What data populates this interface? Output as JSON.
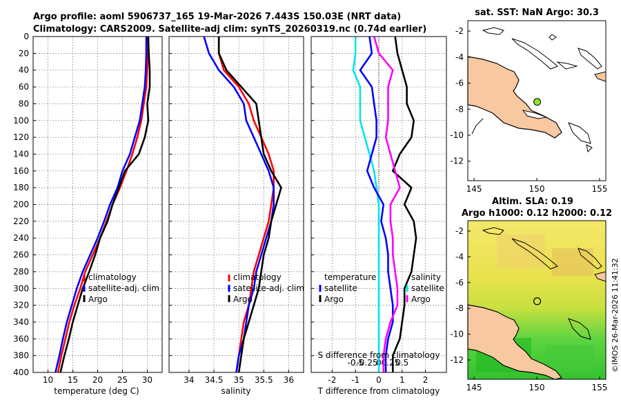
{
  "header": {
    "title_line1": "Argo profile: aoml 5906737_165 19-Mar-2026 7.443S 150.03E (NRT data)",
    "title_line2": "Climatology: CARS2009. Satellite-adj clim: synTS_20260319.nc (0.74d earlier)"
  },
  "colors": {
    "climatology": "#ff0000",
    "satellite": "#0000ff",
    "argo": "#000000",
    "temp_diff": "#00e5ee",
    "sal_diff": "#ff00ff",
    "land": "#f8c8a0",
    "map_marker": "#90e030"
  },
  "chart_data": [
    {
      "type": "line",
      "title": "",
      "xlabel": "temperature (deg C)",
      "ylabel": "",
      "xlim": [
        7,
        33
      ],
      "ylim": [
        400,
        0
      ],
      "xticks": [
        10,
        15,
        20,
        25,
        30
      ],
      "yticks": [
        0,
        20,
        40,
        60,
        80,
        100,
        120,
        140,
        160,
        180,
        200,
        220,
        240,
        260,
        280,
        300,
        320,
        340,
        360,
        380,
        400
      ],
      "grid": true,
      "legend": [
        "climatology",
        "satellite-adj. clim",
        "Argo"
      ],
      "series": [
        {
          "name": "climatology",
          "color": "red",
          "points": [
            [
              30.1,
              0
            ],
            [
              30.1,
              20
            ],
            [
              30.0,
              40
            ],
            [
              29.8,
              60
            ],
            [
              29.3,
              80
            ],
            [
              28.8,
              100
            ],
            [
              28.0,
              120
            ],
            [
              27.0,
              140
            ],
            [
              25.8,
              160
            ],
            [
              24.5,
              180
            ],
            [
              23.0,
              200
            ],
            [
              21.8,
              220
            ],
            [
              20.5,
              240
            ],
            [
              19.0,
              260
            ],
            [
              17.5,
              280
            ],
            [
              16.5,
              300
            ],
            [
              15.3,
              320
            ],
            [
              14.3,
              340
            ],
            [
              13.5,
              360
            ],
            [
              12.7,
              380
            ],
            [
              12.0,
              400
            ]
          ]
        },
        {
          "name": "satellite-adj. clim",
          "color": "blue",
          "points": [
            [
              29.8,
              0
            ],
            [
              29.8,
              20
            ],
            [
              29.7,
              40
            ],
            [
              29.5,
              60
            ],
            [
              29.0,
              80
            ],
            [
              28.5,
              100
            ],
            [
              27.5,
              120
            ],
            [
              26.5,
              140
            ],
            [
              25.0,
              160
            ],
            [
              24.0,
              180
            ],
            [
              22.5,
              200
            ],
            [
              21.3,
              220
            ],
            [
              20.0,
              240
            ],
            [
              18.5,
              260
            ],
            [
              17.0,
              280
            ],
            [
              15.8,
              300
            ],
            [
              14.8,
              320
            ],
            [
              13.8,
              340
            ],
            [
              13.0,
              360
            ],
            [
              12.3,
              380
            ],
            [
              11.5,
              400
            ]
          ]
        },
        {
          "name": "Argo",
          "color": "black",
          "points": [
            [
              30.2,
              0
            ],
            [
              30.3,
              20
            ],
            [
              30.5,
              40
            ],
            [
              30.5,
              60
            ],
            [
              30.0,
              80
            ],
            [
              30.2,
              100
            ],
            [
              29.5,
              120
            ],
            [
              28.3,
              140
            ],
            [
              25.5,
              160
            ],
            [
              24.3,
              180
            ],
            [
              23.0,
              200
            ],
            [
              22.0,
              220
            ],
            [
              20.5,
              240
            ],
            [
              19.5,
              260
            ],
            [
              18.3,
              280
            ],
            [
              17.0,
              300
            ],
            [
              16.0,
              320
            ],
            [
              15.0,
              340
            ],
            [
              14.2,
              360
            ],
            [
              13.3,
              380
            ],
            [
              12.5,
              400
            ]
          ]
        }
      ]
    },
    {
      "type": "line",
      "xlabel": "salinity",
      "xlim": [
        33.6,
        36.3
      ],
      "ylim": [
        400,
        0
      ],
      "xticks": [
        34,
        34.5,
        35,
        35.5,
        36
      ],
      "grid": true,
      "legend": [
        "climatology",
        "satellite-adj. clim",
        "Argo"
      ],
      "series": [
        {
          "name": "climatology",
          "color": "red",
          "points": [
            [
              34.6,
              0
            ],
            [
              34.6,
              20
            ],
            [
              34.7,
              40
            ],
            [
              35.0,
              60
            ],
            [
              35.2,
              80
            ],
            [
              35.3,
              100
            ],
            [
              35.45,
              120
            ],
            [
              35.6,
              140
            ],
            [
              35.7,
              160
            ],
            [
              35.7,
              180
            ],
            [
              35.65,
              200
            ],
            [
              35.6,
              220
            ],
            [
              35.5,
              240
            ],
            [
              35.4,
              260
            ],
            [
              35.3,
              280
            ],
            [
              35.25,
              300
            ],
            [
              35.2,
              320
            ],
            [
              35.1,
              340
            ],
            [
              35.05,
              360
            ],
            [
              35.0,
              380
            ],
            [
              34.95,
              400
            ]
          ]
        },
        {
          "name": "satellite-adj. clim",
          "color": "blue",
          "points": [
            [
              34.3,
              0
            ],
            [
              34.4,
              20
            ],
            [
              34.6,
              40
            ],
            [
              34.9,
              60
            ],
            [
              35.1,
              80
            ],
            [
              35.15,
              100
            ],
            [
              35.3,
              120
            ],
            [
              35.45,
              140
            ],
            [
              35.6,
              160
            ],
            [
              35.7,
              180
            ],
            [
              35.7,
              200
            ],
            [
              35.65,
              220
            ],
            [
              35.55,
              240
            ],
            [
              35.45,
              260
            ],
            [
              35.35,
              280
            ],
            [
              35.3,
              300
            ],
            [
              35.2,
              320
            ],
            [
              35.15,
              340
            ],
            [
              35.1,
              360
            ],
            [
              35.0,
              380
            ],
            [
              34.95,
              400
            ]
          ]
        },
        {
          "name": "Argo",
          "color": "black",
          "points": [
            [
              34.6,
              0
            ],
            [
              34.6,
              20
            ],
            [
              34.75,
              40
            ],
            [
              35.05,
              60
            ],
            [
              35.35,
              80
            ],
            [
              35.4,
              100
            ],
            [
              35.45,
              120
            ],
            [
              35.5,
              140
            ],
            [
              35.65,
              160
            ],
            [
              35.85,
              180
            ],
            [
              35.75,
              200
            ],
            [
              35.65,
              220
            ],
            [
              35.6,
              240
            ],
            [
              35.5,
              260
            ],
            [
              35.45,
              280
            ],
            [
              35.4,
              300
            ],
            [
              35.3,
              320
            ],
            [
              35.2,
              340
            ],
            [
              35.1,
              360
            ],
            [
              35.05,
              380
            ],
            [
              35.0,
              400
            ]
          ]
        }
      ]
    },
    {
      "type": "line",
      "xlabel": "T difference from climatology",
      "top_axis_label": "S difference from climatology",
      "xlim": [
        -2.9,
        2.9
      ],
      "ylim": [
        400,
        0
      ],
      "xticks": [
        -2,
        -1,
        0,
        1,
        2
      ],
      "top_ticks": [
        "-0.5",
        "-0.25",
        "0",
        "0.25",
        "0.5"
      ],
      "grid": true,
      "legend_left_title": "temperature",
      "legend_right_title": "salinity",
      "legend": [
        "satellite",
        "Argo"
      ],
      "series": [
        {
          "name": "temperature satellite",
          "color": "cyan",
          "points": [
            [
              -1.0,
              0
            ],
            [
              -1.0,
              20
            ],
            [
              -1.1,
              40
            ],
            [
              -0.8,
              60
            ],
            [
              -0.8,
              80
            ],
            [
              -0.8,
              100
            ],
            [
              -0.6,
              120
            ],
            [
              -0.4,
              140
            ],
            [
              -0.2,
              160
            ],
            [
              -0.1,
              180
            ],
            [
              0.0,
              200
            ],
            [
              0.0,
              240
            ],
            [
              0.0,
              280
            ],
            [
              0.0,
              320
            ],
            [
              0.0,
              360
            ],
            [
              0.0,
              400
            ]
          ]
        },
        {
          "name": "temperature Argo",
          "color": "black",
          "points": [
            [
              0.7,
              0
            ],
            [
              0.8,
              20
            ],
            [
              1.0,
              40
            ],
            [
              1.2,
              60
            ],
            [
              1.2,
              80
            ],
            [
              1.5,
              100
            ],
            [
              1.4,
              120
            ],
            [
              0.9,
              140
            ],
            [
              0.6,
              160
            ],
            [
              1.4,
              180
            ],
            [
              1.1,
              200
            ],
            [
              1.5,
              220
            ],
            [
              1.6,
              240
            ],
            [
              1.5,
              260
            ],
            [
              1.4,
              280
            ],
            [
              1.1,
              300
            ],
            [
              1.1,
              320
            ],
            [
              1.0,
              340
            ],
            [
              0.9,
              360
            ],
            [
              0.6,
              380
            ],
            [
              0.6,
              400
            ]
          ]
        },
        {
          "name": "salinity satellite",
          "color": "blue",
          "points": [
            [
              -0.4,
              0
            ],
            [
              -0.3,
              20
            ],
            [
              -0.8,
              40
            ],
            [
              -0.3,
              60
            ],
            [
              -0.2,
              80
            ],
            [
              -0.1,
              100
            ],
            [
              -0.1,
              120
            ],
            [
              -0.3,
              140
            ],
            [
              -0.5,
              160
            ],
            [
              -0.2,
              180
            ],
            [
              0.2,
              200
            ],
            [
              0.1,
              220
            ],
            [
              0.3,
              240
            ],
            [
              0.4,
              260
            ],
            [
              0.4,
              280
            ],
            [
              0.5,
              300
            ],
            [
              0.6,
              320
            ],
            [
              0.6,
              340
            ],
            [
              0.4,
              360
            ],
            [
              0.3,
              380
            ],
            [
              0.3,
              400
            ]
          ]
        },
        {
          "name": "salinity Argo",
          "color": "magenta",
          "points": [
            [
              -0.2,
              0
            ],
            [
              0.0,
              20
            ],
            [
              0.6,
              40
            ],
            [
              0.4,
              60
            ],
            [
              0.4,
              80
            ],
            [
              0.4,
              100
            ],
            [
              0.3,
              120
            ],
            [
              0.5,
              140
            ],
            [
              0.7,
              160
            ],
            [
              0.9,
              180
            ],
            [
              0.5,
              200
            ],
            [
              0.5,
              220
            ],
            [
              0.6,
              240
            ],
            [
              0.6,
              260
            ],
            [
              0.7,
              280
            ],
            [
              0.8,
              300
            ],
            [
              0.8,
              320
            ],
            [
              0.5,
              340
            ],
            [
              0.3,
              360
            ],
            [
              0.2,
              380
            ],
            [
              0.2,
              400
            ]
          ]
        }
      ]
    },
    {
      "type": "map",
      "title": "sat. SST: NaN Argo: 30.3",
      "xticks": [
        145,
        150,
        155
      ],
      "yticks": [
        -2,
        -4,
        -6,
        -8,
        -10,
        -12
      ],
      "xlim": [
        144.5,
        155.5
      ],
      "ylim": [
        -13.5,
        -1.2
      ],
      "marker": [
        150.03,
        -7.443
      ]
    },
    {
      "type": "map",
      "title_line1": "Altim. SLA: 0.19",
      "title_line2": "Argo h1000: 0.12 h2000: 0.12",
      "xticks": [
        145,
        150,
        155
      ],
      "yticks": [
        -2,
        -4,
        -6,
        -8,
        -10,
        -12
      ],
      "xlim": [
        144.5,
        155.5
      ],
      "ylim": [
        -13.5,
        -1.2
      ],
      "marker": [
        150.03,
        -7.443
      ]
    }
  ],
  "footer": {
    "stamp": "©IMOS 26-Mar-2026 11:41:32"
  }
}
